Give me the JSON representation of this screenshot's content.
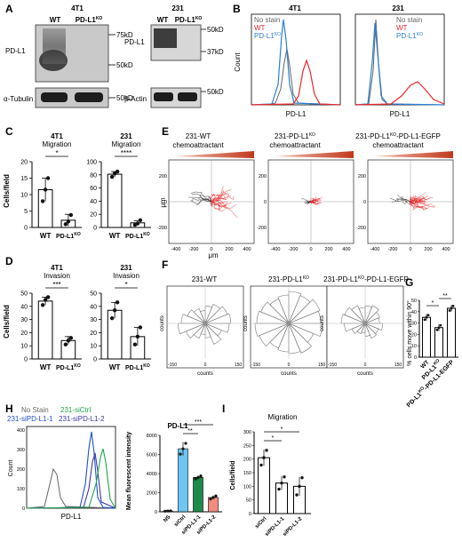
{
  "panel_letters": [
    "A",
    "B",
    "C",
    "D",
    "E",
    "F",
    "G",
    "H",
    "I"
  ],
  "panelA": {
    "left_title": "4T1",
    "right_title": "231",
    "left_cols": [
      "WT",
      "PD-L1"
    ],
    "right_cols": [
      "WT",
      "PD-L1"
    ],
    "ko_sup": "KO",
    "protein": "PD-L1",
    "left_markers": [
      "75kD",
      "50kD"
    ],
    "right_markers": [
      "50kD",
      "37kD"
    ],
    "left_loading": "α-Tubulin",
    "left_loading_marker": "50kD",
    "right_loading": "β-Actin",
    "right_loading_marker": "50kD"
  },
  "panelB": {
    "left_title": "4T1",
    "right_title": "231",
    "ylabel": "Count",
    "xlabel": "PD-L1",
    "legend": [
      "No stain",
      "WT",
      "PD-L1"
    ],
    "ko_sup": "KO",
    "colors": {
      "nostain": "#666666",
      "wt": "#e8292b",
      "ko": "#2c7fd4"
    }
  },
  "panelC": {
    "ylabel": "Cells/field",
    "charts": [
      {
        "title1": "4T1",
        "title2": "Migration",
        "sig": "*",
        "categories": [
          "WT",
          "PD-L1"
        ],
        "values": [
          11.5,
          2.2
        ],
        "errors": [
          3.5,
          1.8
        ],
        "points": [
          [
            8,
            11.5,
            15
          ],
          [
            1,
            1.8,
            3.8
          ]
        ],
        "yticks": [
          "0",
          "5",
          "10",
          "15",
          "20"
        ],
        "ylim": [
          0,
          20
        ]
      },
      {
        "title1": "231",
        "title2": "Migration",
        "sig": "****",
        "categories": [
          "WT",
          "PD-L1"
        ],
        "values": [
          81,
          7
        ],
        "errors": [
          4,
          3
        ],
        "points": [
          [
            77,
            82,
            85
          ],
          [
            4,
            6,
            11
          ]
        ],
        "yticks": [
          "0",
          "20",
          "40",
          "60",
          "80",
          "100"
        ],
        "ylim": [
          0,
          100
        ]
      }
    ]
  },
  "panelD": {
    "ylabel": "Cells/field",
    "charts": [
      {
        "title1": "4T1",
        "title2": "Invasion",
        "sig": "***",
        "categories": [
          "WT",
          "PD-L1"
        ],
        "values": [
          44,
          14
        ],
        "errors": [
          3,
          3
        ],
        "points": [
          [
            41,
            45,
            47
          ],
          [
            11,
            14,
            16
          ]
        ],
        "yticks": [
          "0",
          "10",
          "20",
          "30",
          "40",
          "50"
        ],
        "ylim": [
          0,
          50
        ]
      },
      {
        "title1": "231",
        "title2": "Invasion",
        "sig": "*",
        "categories": [
          "WT",
          "PD-L1"
        ],
        "values": [
          37,
          17
        ],
        "errors": [
          6,
          7
        ],
        "points": [
          [
            31,
            37,
            43
          ],
          [
            11,
            17,
            24
          ]
        ],
        "yticks": [
          "0",
          "10",
          "20",
          "30",
          "40",
          "50"
        ],
        "ylim": [
          0,
          50
        ]
      }
    ]
  },
  "panelE": {
    "titles": [
      "231-WT",
      "231-PD-L1",
      "231-PD-L1"
    ],
    "title3_rest": "-PD-L1-EGFP",
    "subtitle": "chemoattractant",
    "axis_unit": "μm",
    "ticks": [
      "-400",
      "-200",
      "0",
      "200",
      "400"
    ],
    "yticks": [
      "200",
      "0",
      "-200"
    ]
  },
  "panelF": {
    "titles": [
      "231-WT",
      "231-PD-L1",
      "231-PD-L1"
    ],
    "title3_rest": "-PD-L1-EGFP",
    "axis": "counts",
    "xticks": [
      "-150",
      "-100",
      "-50",
      "0",
      "50",
      "100",
      "150"
    ]
  },
  "panelG": {
    "ylabel": "% cells move within 90°",
    "categories": [
      "WT",
      "PD-L1",
      "PD-L1"
    ],
    "cat3_rest": "-PD-L1-EGFP",
    "yticks": [
      "0",
      "10",
      "20",
      "30",
      "40",
      "50"
    ],
    "sig": [
      "*",
      "**"
    ]
  },
  "panelH": {
    "legend": [
      "No Stain",
      "231-siCtrl",
      "231-siPD-L1-1",
      "231-siPD-L1-2"
    ],
    "legend_colors": [
      "#666666",
      "#1fa84a",
      "#1f4fd0",
      "#3a3aa8"
    ],
    "xlabel": "PD-L1",
    "ylabel": "Count",
    "yticks": [
      "0",
      "100",
      "200",
      "300",
      "400"
    ],
    "bar_title": "PD-L1",
    "bar_ylabel": "Mean fluorescent intensity",
    "categories": [
      "NS",
      "siCtrl",
      "siPD-L1-1",
      "siPD-L1-2"
    ],
    "bar_yticks": [
      "0",
      "2000",
      "4000",
      "6000",
      "8000"
    ],
    "sig": [
      "**",
      "***"
    ]
  },
  "panelI": {
    "title": "Migration",
    "ylabel": "Cells/field",
    "categories": [
      "siCtrl",
      "siPD-L1-1",
      "siPD-L1-2"
    ],
    "yticks": [
      "0",
      "50",
      "100",
      "150",
      "200",
      "250",
      "300"
    ],
    "sig": [
      "*",
      "*"
    ]
  },
  "chart_data": [
    {
      "type": "bar",
      "panel": "C-4T1",
      "title": "4T1 Migration",
      "categories": [
        "WT",
        "PD-L1KO"
      ],
      "values": [
        11.5,
        2.2
      ],
      "ylabel": "Cells/field",
      "ylim": [
        0,
        20
      ]
    },
    {
      "type": "bar",
      "panel": "C-231",
      "title": "231 Migration",
      "categories": [
        "WT",
        "PD-L1KO"
      ],
      "values": [
        81,
        7
      ],
      "ylabel": "Cells/field",
      "ylim": [
        0,
        100
      ]
    },
    {
      "type": "bar",
      "panel": "D-4T1",
      "title": "4T1 Invasion",
      "categories": [
        "WT",
        "PD-L1KO"
      ],
      "values": [
        44,
        14
      ],
      "ylabel": "Cells/field",
      "ylim": [
        0,
        50
      ]
    },
    {
      "type": "bar",
      "panel": "D-231",
      "title": "231 Invasion",
      "categories": [
        "WT",
        "PD-L1KO"
      ],
      "values": [
        37,
        17
      ],
      "ylabel": "Cells/field",
      "ylim": [
        0,
        50
      ]
    },
    {
      "type": "bar",
      "panel": "G",
      "categories": [
        "WT",
        "PD-L1KO",
        "PD-L1KO-PD-L1-EGFP"
      ],
      "values": [
        35,
        26,
        43
      ],
      "errors": [
        3,
        3,
        3
      ],
      "ylabel": "% cells move within 90°",
      "ylim": [
        0,
        50
      ]
    },
    {
      "type": "bar",
      "panel": "H",
      "title": "PD-L1",
      "categories": [
        "NS",
        "siCtrl",
        "siPD-L1-1",
        "siPD-L1-2"
      ],
      "values": [
        80,
        6600,
        3600,
        1500
      ],
      "errors": [
        20,
        700,
        200,
        200
      ],
      "ylabel": "Mean fluorescent intensity",
      "ylim": [
        0,
        8000
      ],
      "colors": [
        "#ffffff",
        "#6ec6f2",
        "#1f8a4a",
        "#f28b80"
      ]
    },
    {
      "type": "bar",
      "panel": "I",
      "title": "Migration",
      "categories": [
        "siCtrl",
        "siPD-L1-1",
        "siPD-L1-2"
      ],
      "values": [
        205,
        112,
        100
      ],
      "errors": [
        30,
        25,
        35
      ],
      "ylabel": "Cells/field",
      "ylim": [
        0,
        300
      ]
    }
  ]
}
